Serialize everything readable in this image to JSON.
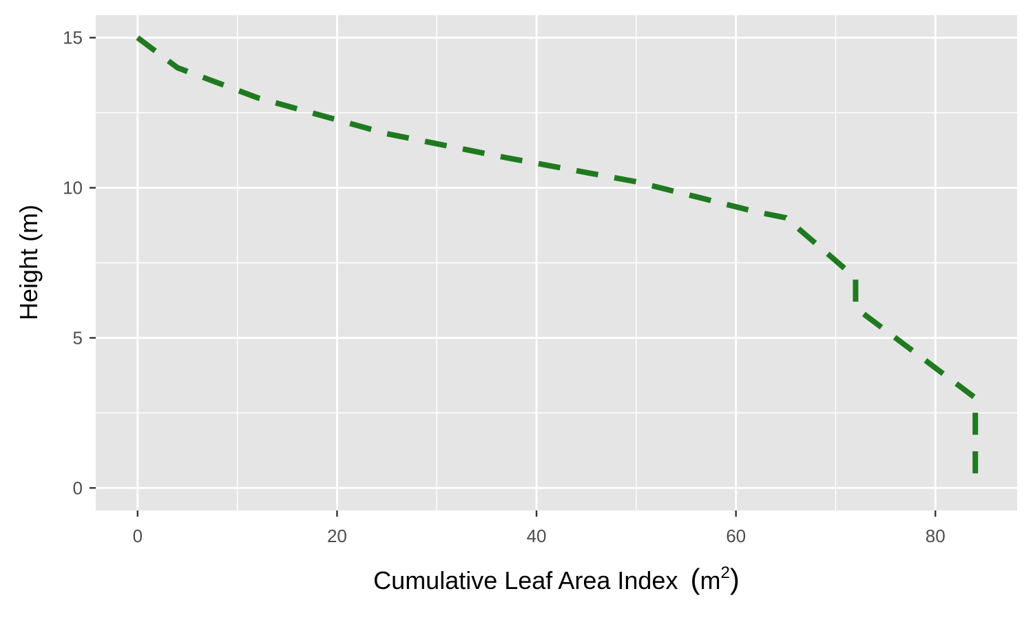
{
  "colors": {
    "panel_background": "#e5e5e5",
    "grid_line": "#ffffff",
    "line": "#1f7a1f",
    "tick_mark": "#333333",
    "tick_label": "#4d4d4d",
    "axis_title": "#000000"
  },
  "chart_data": {
    "type": "line",
    "title": "",
    "xlabel": "Cumulative Leaf Area Index",
    "xlabel_unit_base": "m",
    "xlabel_unit_exp": "2",
    "ylabel": "Height (m)",
    "xlim": [
      -4.2,
      88.2
    ],
    "ylim": [
      -0.75,
      15.75
    ],
    "x_ticks": [
      {
        "value": 0,
        "label": "0"
      },
      {
        "value": 20,
        "label": "20"
      },
      {
        "value": 40,
        "label": "40"
      },
      {
        "value": 60,
        "label": "60"
      },
      {
        "value": 80,
        "label": "80"
      }
    ],
    "x_minor_grid": [
      10,
      30,
      50,
      70
    ],
    "y_ticks": [
      {
        "value": 0,
        "label": "0"
      },
      {
        "value": 5,
        "label": "5"
      },
      {
        "value": 10,
        "label": "10"
      },
      {
        "value": 15,
        "label": "15"
      }
    ],
    "y_minor_grid": [
      2.5,
      7.5,
      12.5
    ],
    "grid": true,
    "legend": "none",
    "series": [
      {
        "line_style": "dashed",
        "x": [
          0,
          4,
          12,
          25,
          37,
          50,
          62,
          65,
          72,
          72,
          84,
          84
        ],
        "y": [
          15,
          14,
          13,
          11.8,
          11,
          10.2,
          9.2,
          9,
          7,
          6,
          3,
          0
        ]
      }
    ]
  }
}
